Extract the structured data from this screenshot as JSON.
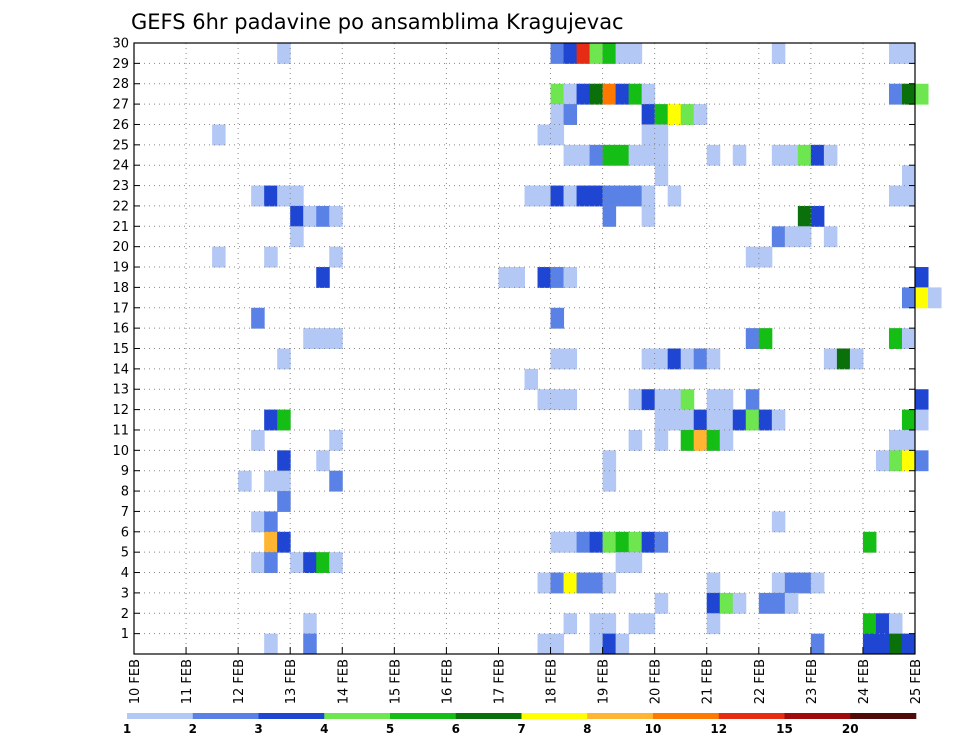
{
  "chart_data": {
    "type": "heatmap",
    "title": "GEFS 6hr padavine po ansamblima Kragujevac",
    "y_ticks": [
      "1",
      "2",
      "3",
      "4",
      "5",
      "6",
      "7",
      "8",
      "9",
      "10",
      "11",
      "12",
      "13",
      "14",
      "15",
      "16",
      "17",
      "18",
      "19",
      "20",
      "21",
      "22",
      "23",
      "24",
      "25",
      "26",
      "27",
      "28",
      "29",
      "30"
    ],
    "x_ticks": [
      "10 FEB",
      "11 FEB",
      "12 FEB",
      "13 FEB",
      "14 FEB",
      "15 FEB",
      "16 FEB",
      "17 FEB",
      "18 FEB",
      "19 FEB",
      "20 FEB",
      "21 FEB",
      "22 FEB",
      "23 FEB",
      "24 FEB",
      "25 FEB"
    ],
    "x_range_days": [
      0,
      15
    ],
    "y_range": [
      0,
      30
    ],
    "grid": true,
    "colorbar": {
      "labels": [
        "1",
        "2",
        "3",
        "4",
        "5",
        "6",
        "7",
        "8",
        "10",
        "12",
        "15",
        "20"
      ],
      "colors": [
        "#b4c8f5",
        "#5a82e6",
        "#1e46d2",
        "#6ee650",
        "#14be14",
        "#0a700a",
        "#ffff00",
        "#ffb432",
        "#ff7800",
        "#e62d14",
        "#a00a0a",
        "#500a0a"
      ]
    },
    "cells_note_units": "x = days since 10 FEB (6h steps), y = ensemble member, v = colour class index",
    "cells": [
      {
        "x": 2.75,
        "y": 30,
        "v": 0
      },
      {
        "x": 8.0,
        "y": 30,
        "v": 1
      },
      {
        "x": 8.25,
        "y": 30,
        "v": 2
      },
      {
        "x": 8.5,
        "y": 30,
        "v": 9
      },
      {
        "x": 8.75,
        "y": 30,
        "v": 3
      },
      {
        "x": 9.0,
        "y": 30,
        "v": 4
      },
      {
        "x": 9.25,
        "y": 30,
        "v": 0
      },
      {
        "x": 9.5,
        "y": 30,
        "v": 0
      },
      {
        "x": 12.25,
        "y": 30,
        "v": 0
      },
      {
        "x": 14.5,
        "y": 30,
        "v": 0
      },
      {
        "x": 14.75,
        "y": 30,
        "v": 0
      },
      {
        "x": 8.0,
        "y": 28,
        "v": 3
      },
      {
        "x": 8.25,
        "y": 28,
        "v": 0
      },
      {
        "x": 8.5,
        "y": 28,
        "v": 2
      },
      {
        "x": 8.75,
        "y": 28,
        "v": 5
      },
      {
        "x": 9.0,
        "y": 28,
        "v": 8
      },
      {
        "x": 9.25,
        "y": 28,
        "v": 2
      },
      {
        "x": 9.5,
        "y": 28,
        "v": 4
      },
      {
        "x": 9.75,
        "y": 28,
        "v": 0
      },
      {
        "x": 14.5,
        "y": 28,
        "v": 1
      },
      {
        "x": 14.75,
        "y": 28,
        "v": 5
      },
      {
        "x": 15.0,
        "y": 28,
        "v": 3
      },
      {
        "x": 8.0,
        "y": 27,
        "v": 0
      },
      {
        "x": 8.25,
        "y": 27,
        "v": 1
      },
      {
        "x": 9.75,
        "y": 27,
        "v": 2
      },
      {
        "x": 10.0,
        "y": 27,
        "v": 4
      },
      {
        "x": 10.25,
        "y": 27,
        "v": 6
      },
      {
        "x": 10.5,
        "y": 27,
        "v": 3
      },
      {
        "x": 10.75,
        "y": 27,
        "v": 0
      },
      {
        "x": 1.5,
        "y": 26,
        "v": 0
      },
      {
        "x": 7.75,
        "y": 26,
        "v": 0
      },
      {
        "x": 8.0,
        "y": 26,
        "v": 0
      },
      {
        "x": 9.75,
        "y": 26,
        "v": 0
      },
      {
        "x": 10.0,
        "y": 26,
        "v": 0
      },
      {
        "x": 8.25,
        "y": 25,
        "v": 0
      },
      {
        "x": 8.5,
        "y": 25,
        "v": 0
      },
      {
        "x": 8.75,
        "y": 25,
        "v": 1
      },
      {
        "x": 9.0,
        "y": 25,
        "v": 4
      },
      {
        "x": 9.25,
        "y": 25,
        "v": 4
      },
      {
        "x": 9.5,
        "y": 25,
        "v": 0
      },
      {
        "x": 9.75,
        "y": 25,
        "v": 0
      },
      {
        "x": 10.0,
        "y": 25,
        "v": 0
      },
      {
        "x": 11.0,
        "y": 25,
        "v": 0
      },
      {
        "x": 11.5,
        "y": 25,
        "v": 0
      },
      {
        "x": 12.25,
        "y": 25,
        "v": 0
      },
      {
        "x": 12.5,
        "y": 25,
        "v": 0
      },
      {
        "x": 12.75,
        "y": 25,
        "v": 3
      },
      {
        "x": 13.0,
        "y": 25,
        "v": 2
      },
      {
        "x": 13.25,
        "y": 25,
        "v": 0
      },
      {
        "x": 10.0,
        "y": 24,
        "v": 0
      },
      {
        "x": 14.75,
        "y": 24,
        "v": 0
      },
      {
        "x": 2.25,
        "y": 23,
        "v": 0
      },
      {
        "x": 2.5,
        "y": 23,
        "v": 2
      },
      {
        "x": 2.75,
        "y": 23,
        "v": 0
      },
      {
        "x": 3.0,
        "y": 23,
        "v": 0
      },
      {
        "x": 7.5,
        "y": 23,
        "v": 0
      },
      {
        "x": 7.75,
        "y": 23,
        "v": 0
      },
      {
        "x": 8.0,
        "y": 23,
        "v": 2
      },
      {
        "x": 8.25,
        "y": 23,
        "v": 0
      },
      {
        "x": 8.5,
        "y": 23,
        "v": 2
      },
      {
        "x": 8.75,
        "y": 23,
        "v": 2
      },
      {
        "x": 9.0,
        "y": 23,
        "v": 1
      },
      {
        "x": 9.25,
        "y": 23,
        "v": 1
      },
      {
        "x": 9.5,
        "y": 23,
        "v": 1
      },
      {
        "x": 9.75,
        "y": 23,
        "v": 0
      },
      {
        "x": 10.25,
        "y": 23,
        "v": 0
      },
      {
        "x": 14.5,
        "y": 23,
        "v": 0
      },
      {
        "x": 14.75,
        "y": 23,
        "v": 0
      },
      {
        "x": 3.0,
        "y": 22,
        "v": 2
      },
      {
        "x": 3.25,
        "y": 22,
        "v": 0
      },
      {
        "x": 3.5,
        "y": 22,
        "v": 1
      },
      {
        "x": 3.75,
        "y": 22,
        "v": 0
      },
      {
        "x": 9.0,
        "y": 22,
        "v": 1
      },
      {
        "x": 9.75,
        "y": 22,
        "v": 0
      },
      {
        "x": 12.75,
        "y": 22,
        "v": 5
      },
      {
        "x": 13.0,
        "y": 22,
        "v": 2
      },
      {
        "x": 3.0,
        "y": 21,
        "v": 0
      },
      {
        "x": 12.25,
        "y": 21,
        "v": 1
      },
      {
        "x": 12.5,
        "y": 21,
        "v": 0
      },
      {
        "x": 12.75,
        "y": 21,
        "v": 0
      },
      {
        "x": 13.25,
        "y": 21,
        "v": 0
      },
      {
        "x": 1.5,
        "y": 20,
        "v": 0
      },
      {
        "x": 2.5,
        "y": 20,
        "v": 0
      },
      {
        "x": 3.75,
        "y": 20,
        "v": 0
      },
      {
        "x": 11.75,
        "y": 20,
        "v": 0
      },
      {
        "x": 12.0,
        "y": 20,
        "v": 0
      },
      {
        "x": 3.5,
        "y": 19,
        "v": 2
      },
      {
        "x": 7.0,
        "y": 19,
        "v": 0
      },
      {
        "x": 7.25,
        "y": 19,
        "v": 0
      },
      {
        "x": 7.75,
        "y": 19,
        "v": 2
      },
      {
        "x": 8.0,
        "y": 19,
        "v": 1
      },
      {
        "x": 8.25,
        "y": 19,
        "v": 0
      },
      {
        "x": 15.0,
        "y": 19,
        "v": 2
      },
      {
        "x": 14.75,
        "y": 18,
        "v": 1
      },
      {
        "x": 15.0,
        "y": 18,
        "v": 6
      },
      {
        "x": 15.25,
        "y": 18,
        "v": 0
      },
      {
        "x": 2.25,
        "y": 17,
        "v": 1
      },
      {
        "x": 8.0,
        "y": 17,
        "v": 1
      },
      {
        "x": 3.25,
        "y": 16,
        "v": 0
      },
      {
        "x": 3.5,
        "y": 16,
        "v": 0
      },
      {
        "x": 3.75,
        "y": 16,
        "v": 0
      },
      {
        "x": 11.75,
        "y": 16,
        "v": 1
      },
      {
        "x": 12.0,
        "y": 16,
        "v": 4
      },
      {
        "x": 14.5,
        "y": 16,
        "v": 4
      },
      {
        "x": 14.75,
        "y": 16,
        "v": 0
      },
      {
        "x": 2.75,
        "y": 15,
        "v": 0
      },
      {
        "x": 8.0,
        "y": 15,
        "v": 0
      },
      {
        "x": 8.25,
        "y": 15,
        "v": 0
      },
      {
        "x": 9.75,
        "y": 15,
        "v": 0
      },
      {
        "x": 10.0,
        "y": 15,
        "v": 0
      },
      {
        "x": 10.25,
        "y": 15,
        "v": 2
      },
      {
        "x": 10.5,
        "y": 15,
        "v": 0
      },
      {
        "x": 10.75,
        "y": 15,
        "v": 1
      },
      {
        "x": 11.0,
        "y": 15,
        "v": 0
      },
      {
        "x": 13.25,
        "y": 15,
        "v": 0
      },
      {
        "x": 13.5,
        "y": 15,
        "v": 5
      },
      {
        "x": 13.75,
        "y": 15,
        "v": 0
      },
      {
        "x": 7.5,
        "y": 14,
        "v": 0
      },
      {
        "x": 7.75,
        "y": 13,
        "v": 0
      },
      {
        "x": 8.0,
        "y": 13,
        "v": 0
      },
      {
        "x": 8.25,
        "y": 13,
        "v": 0
      },
      {
        "x": 9.5,
        "y": 13,
        "v": 0
      },
      {
        "x": 9.75,
        "y": 13,
        "v": 2
      },
      {
        "x": 10.0,
        "y": 13,
        "v": 0
      },
      {
        "x": 10.25,
        "y": 13,
        "v": 0
      },
      {
        "x": 10.5,
        "y": 13,
        "v": 3
      },
      {
        "x": 11.0,
        "y": 13,
        "v": 0
      },
      {
        "x": 11.25,
        "y": 13,
        "v": 0
      },
      {
        "x": 11.75,
        "y": 13,
        "v": 1
      },
      {
        "x": 15.0,
        "y": 13,
        "v": 2
      },
      {
        "x": 2.5,
        "y": 12,
        "v": 2
      },
      {
        "x": 2.75,
        "y": 12,
        "v": 4
      },
      {
        "x": 10.0,
        "y": 12,
        "v": 0
      },
      {
        "x": 10.25,
        "y": 12,
        "v": 0
      },
      {
        "x": 10.5,
        "y": 12,
        "v": 0
      },
      {
        "x": 10.75,
        "y": 12,
        "v": 2
      },
      {
        "x": 11.0,
        "y": 12,
        "v": 0
      },
      {
        "x": 11.25,
        "y": 12,
        "v": 0
      },
      {
        "x": 11.5,
        "y": 12,
        "v": 2
      },
      {
        "x": 11.75,
        "y": 12,
        "v": 3
      },
      {
        "x": 12.0,
        "y": 12,
        "v": 2
      },
      {
        "x": 12.25,
        "y": 12,
        "v": 0
      },
      {
        "x": 14.75,
        "y": 12,
        "v": 4
      },
      {
        "x": 15.0,
        "y": 12,
        "v": 0
      },
      {
        "x": 2.25,
        "y": 11,
        "v": 0
      },
      {
        "x": 3.75,
        "y": 11,
        "v": 0
      },
      {
        "x": 9.5,
        "y": 11,
        "v": 0
      },
      {
        "x": 10.0,
        "y": 11,
        "v": 0
      },
      {
        "x": 10.5,
        "y": 11,
        "v": 4
      },
      {
        "x": 10.75,
        "y": 11,
        "v": 7
      },
      {
        "x": 11.0,
        "y": 11,
        "v": 4
      },
      {
        "x": 11.25,
        "y": 11,
        "v": 0
      },
      {
        "x": 14.5,
        "y": 11,
        "v": 0
      },
      {
        "x": 14.75,
        "y": 11,
        "v": 0
      },
      {
        "x": 2.75,
        "y": 10,
        "v": 2
      },
      {
        "x": 3.5,
        "y": 10,
        "v": 0
      },
      {
        "x": 9.0,
        "y": 10,
        "v": 0
      },
      {
        "x": 14.25,
        "y": 10,
        "v": 0
      },
      {
        "x": 14.5,
        "y": 10,
        "v": 3
      },
      {
        "x": 14.75,
        "y": 10,
        "v": 6
      },
      {
        "x": 15.0,
        "y": 10,
        "v": 1
      },
      {
        "x": 2.0,
        "y": 9,
        "v": 0
      },
      {
        "x": 2.5,
        "y": 9,
        "v": 0
      },
      {
        "x": 2.75,
        "y": 9,
        "v": 0
      },
      {
        "x": 3.75,
        "y": 9,
        "v": 1
      },
      {
        "x": 9.0,
        "y": 9,
        "v": 0
      },
      {
        "x": 2.75,
        "y": 8,
        "v": 1
      },
      {
        "x": 2.25,
        "y": 7,
        "v": 0
      },
      {
        "x": 2.5,
        "y": 7,
        "v": 1
      },
      {
        "x": 12.25,
        "y": 7,
        "v": 0
      },
      {
        "x": 2.5,
        "y": 6,
        "v": 7
      },
      {
        "x": 2.75,
        "y": 6,
        "v": 2
      },
      {
        "x": 8.0,
        "y": 6,
        "v": 0
      },
      {
        "x": 8.25,
        "y": 6,
        "v": 0
      },
      {
        "x": 8.5,
        "y": 6,
        "v": 1
      },
      {
        "x": 8.75,
        "y": 6,
        "v": 2
      },
      {
        "x": 9.0,
        "y": 6,
        "v": 3
      },
      {
        "x": 9.25,
        "y": 6,
        "v": 4
      },
      {
        "x": 9.5,
        "y": 6,
        "v": 3
      },
      {
        "x": 9.75,
        "y": 6,
        "v": 2
      },
      {
        "x": 10.0,
        "y": 6,
        "v": 1
      },
      {
        "x": 14.0,
        "y": 6,
        "v": 4
      },
      {
        "x": 2.25,
        "y": 5,
        "v": 0
      },
      {
        "x": 2.5,
        "y": 5,
        "v": 1
      },
      {
        "x": 3.0,
        "y": 5,
        "v": 0
      },
      {
        "x": 3.25,
        "y": 5,
        "v": 2
      },
      {
        "x": 3.5,
        "y": 5,
        "v": 4
      },
      {
        "x": 3.75,
        "y": 5,
        "v": 0
      },
      {
        "x": 9.25,
        "y": 5,
        "v": 0
      },
      {
        "x": 9.5,
        "y": 5,
        "v": 0
      },
      {
        "x": 7.75,
        "y": 4,
        "v": 0
      },
      {
        "x": 8.0,
        "y": 4,
        "v": 1
      },
      {
        "x": 8.25,
        "y": 4,
        "v": 6
      },
      {
        "x": 8.5,
        "y": 4,
        "v": 1
      },
      {
        "x": 8.75,
        "y": 4,
        "v": 1
      },
      {
        "x": 9.0,
        "y": 4,
        "v": 0
      },
      {
        "x": 11.0,
        "y": 4,
        "v": 0
      },
      {
        "x": 12.25,
        "y": 4,
        "v": 0
      },
      {
        "x": 12.5,
        "y": 4,
        "v": 1
      },
      {
        "x": 12.75,
        "y": 4,
        "v": 1
      },
      {
        "x": 13.0,
        "y": 4,
        "v": 0
      },
      {
        "x": 10.0,
        "y": 3,
        "v": 0
      },
      {
        "x": 11.0,
        "y": 3,
        "v": 2
      },
      {
        "x": 11.25,
        "y": 3,
        "v": 3
      },
      {
        "x": 11.5,
        "y": 3,
        "v": 0
      },
      {
        "x": 12.0,
        "y": 3,
        "v": 1
      },
      {
        "x": 12.25,
        "y": 3,
        "v": 1
      },
      {
        "x": 12.5,
        "y": 3,
        "v": 0
      },
      {
        "x": 3.25,
        "y": 2,
        "v": 0
      },
      {
        "x": 8.25,
        "y": 2,
        "v": 0
      },
      {
        "x": 8.75,
        "y": 2,
        "v": 0
      },
      {
        "x": 9.0,
        "y": 2,
        "v": 0
      },
      {
        "x": 9.5,
        "y": 2,
        "v": 0
      },
      {
        "x": 9.75,
        "y": 2,
        "v": 0
      },
      {
        "x": 11.0,
        "y": 2,
        "v": 0
      },
      {
        "x": 14.0,
        "y": 2,
        "v": 4
      },
      {
        "x": 14.25,
        "y": 2,
        "v": 2
      },
      {
        "x": 14.5,
        "y": 2,
        "v": 0
      },
      {
        "x": 2.5,
        "y": 1,
        "v": 0
      },
      {
        "x": 3.25,
        "y": 1,
        "v": 1
      },
      {
        "x": 7.75,
        "y": 1,
        "v": 0
      },
      {
        "x": 8.0,
        "y": 1,
        "v": 0
      },
      {
        "x": 8.75,
        "y": 1,
        "v": 0
      },
      {
        "x": 9.0,
        "y": 1,
        "v": 2
      },
      {
        "x": 9.25,
        "y": 1,
        "v": 0
      },
      {
        "x": 13.0,
        "y": 1,
        "v": 1
      },
      {
        "x": 14.0,
        "y": 1,
        "v": 2
      },
      {
        "x": 14.25,
        "y": 1,
        "v": 2
      },
      {
        "x": 14.5,
        "y": 1,
        "v": 5
      },
      {
        "x": 14.75,
        "y": 1,
        "v": 2
      }
    ]
  }
}
